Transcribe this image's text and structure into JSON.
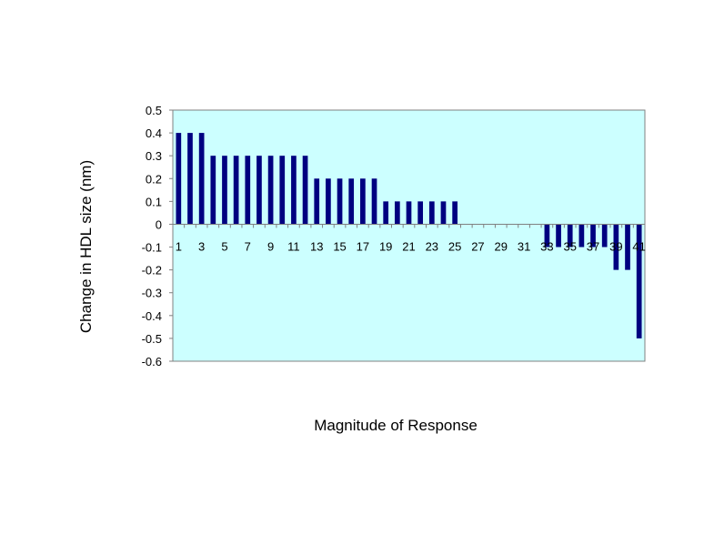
{
  "chart_data": {
    "type": "bar",
    "title": "",
    "xlabel": "Magnitude of Response",
    "ylabel": "Change in HDL size (nm)",
    "ylim": [
      -0.6,
      0.5
    ],
    "yticks": [
      0.5,
      0.4,
      0.3,
      0.2,
      0.1,
      0,
      -0.1,
      -0.2,
      -0.3,
      -0.4,
      -0.5,
      -0.6
    ],
    "ytick_labels": [
      "0.5",
      "0.4",
      "0.3",
      "0.2",
      "0.1",
      "0",
      "-0.1",
      "-0.2",
      "-0.3",
      "-0.4",
      "-0.5",
      "-0.6"
    ],
    "categories": [
      1,
      2,
      3,
      4,
      5,
      6,
      7,
      8,
      9,
      10,
      11,
      12,
      13,
      14,
      15,
      16,
      17,
      18,
      19,
      20,
      21,
      22,
      23,
      24,
      25,
      26,
      27,
      28,
      29,
      30,
      31,
      32,
      33,
      34,
      35,
      36,
      37,
      38,
      39,
      40,
      41
    ],
    "xtick_labels": [
      "1",
      "3",
      "5",
      "7",
      "9",
      "11",
      "13",
      "15",
      "17",
      "19",
      "21",
      "23",
      "25",
      "27",
      "29",
      "31",
      "33",
      "35",
      "37",
      "39",
      "41"
    ],
    "values": [
      0.4,
      0.4,
      0.4,
      0.3,
      0.3,
      0.3,
      0.3,
      0.3,
      0.3,
      0.3,
      0.3,
      0.3,
      0.2,
      0.2,
      0.2,
      0.2,
      0.2,
      0.2,
      0.1,
      0.1,
      0.1,
      0.1,
      0.1,
      0.1,
      0.1,
      0,
      0,
      0,
      0,
      0,
      0,
      0,
      -0.1,
      -0.1,
      -0.1,
      -0.1,
      -0.1,
      -0.1,
      -0.2,
      -0.2,
      -0.5
    ],
    "grid": false,
    "legend": "none",
    "colors": {
      "plot_background": "#ccffff",
      "bar": "#000080",
      "axis": "#808080",
      "text": "#000000"
    }
  }
}
